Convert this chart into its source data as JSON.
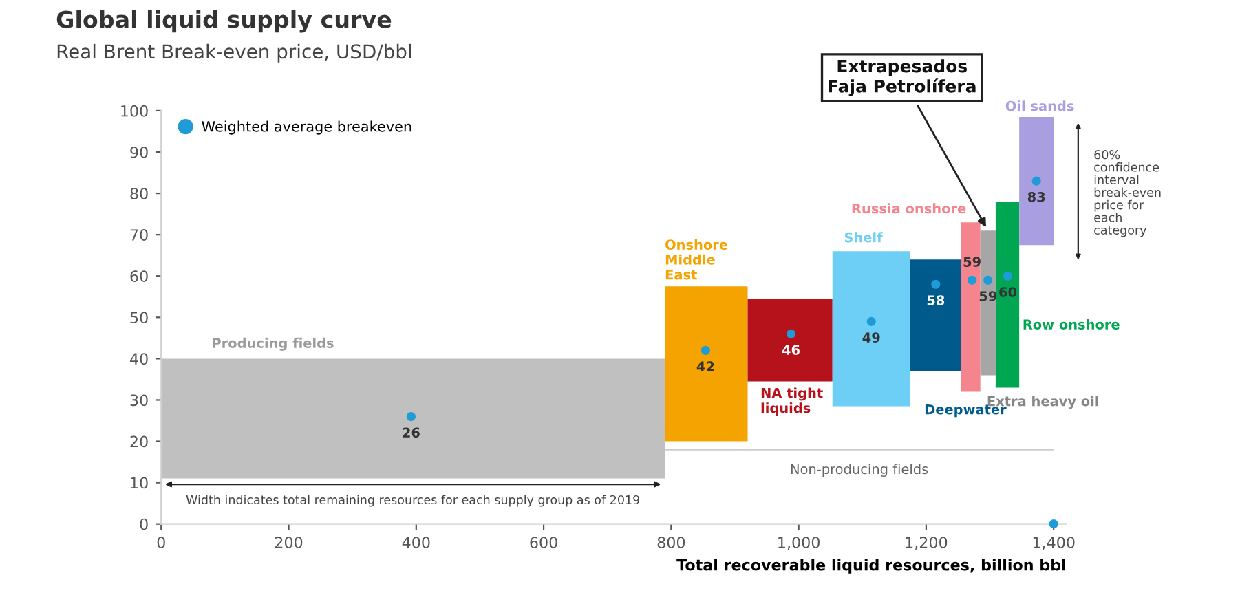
{
  "chart_data": {
    "type": "histogram",
    "title": "Global liquid supply curve",
    "subtitle": "Real Brent Break-even price, USD/bbl",
    "xlabel": "Total recoverable liquid resources, billion bbl",
    "bins": [
      0,
      790,
      920,
      1053,
      1175,
      1255,
      1285,
      1309,
      1346,
      1400
    ],
    "base": [
      11,
      20,
      34.5,
      28.5,
      37,
      32,
      36,
      33,
      67.5
    ],
    "values": [
      29,
      37.5,
      20,
      37.5,
      27,
      41,
      35,
      45,
      31
    ],
    "colors": [
      "#c0c0c0",
      "#f5a300",
      "#b5121b",
      "#6dcff6",
      "#005b8c",
      "#f4858e",
      "#a6a6a6",
      "#00a651",
      "#a99ee0"
    ],
    "series": [
      {
        "type": "scatter",
        "name": "Weighted average breakeven",
        "color": "#1f9bd7",
        "x": [
          392,
          854,
          988,
          1114,
          1215,
          1272,
          1297,
          1328,
          1373,
          1400
        ],
        "values": [
          26,
          42,
          46,
          49,
          58,
          59,
          59,
          60,
          83,
          0
        ],
        "value_labels": [
          "26",
          "42",
          "46",
          "49",
          "58",
          "59",
          "59",
          "60",
          "83",
          null
        ]
      }
    ],
    "legend": "top left",
    "xlim": [
      0,
      1420
    ],
    "ylim": [
      0,
      100
    ],
    "xticks": [
      0,
      200,
      400,
      600,
      800,
      {
        "value": 1000,
        "label": "1,000"
      },
      {
        "value": 1200,
        "label": "1,200"
      },
      {
        "value": 1400,
        "label": "1,400"
      }
    ],
    "yticks": [
      0,
      10,
      20,
      30,
      40,
      50,
      60,
      70,
      80,
      90,
      100
    ],
    "grid": false,
    "annotations": [
      "Producing fields",
      "Onshore\nMiddle\nEast",
      "NA tight\nliquids",
      "Shelf",
      "Deepwater",
      "Russia onshore",
      "Extra heavy oil",
      "Row onshore",
      "Oil sands",
      "Non-producing fields",
      "Width indicates total remaining resources for each supply group as of 2019",
      "60%\nconfidence\ninterval\nbreak-even\nprice for\neach\ncategory",
      {
        "text": "Extrapesados\nFaja Petrolífera",
        "x": 1297,
        "y": 71
      }
    ]
  }
}
